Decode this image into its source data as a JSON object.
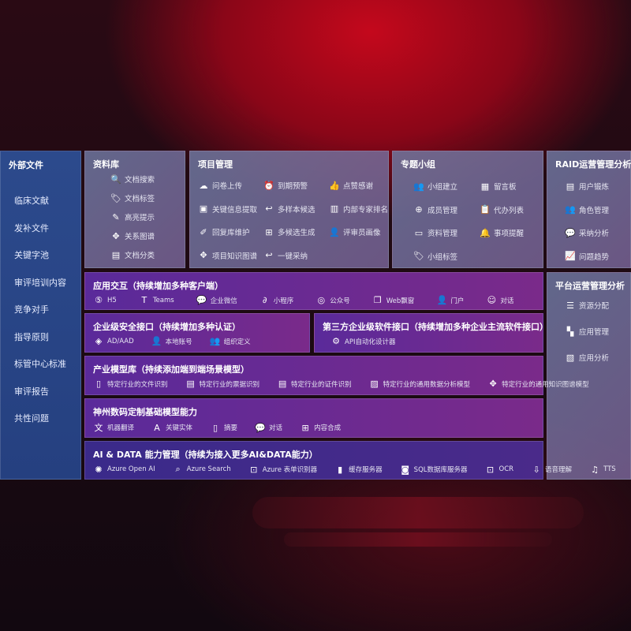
{
  "sidebar": {
    "title": "外部文件",
    "items": [
      "临床文献",
      "发补文件",
      "关键字池",
      "审评培训内容",
      "竞争对手",
      "指导原则",
      "标管中心标准",
      "审评报告",
      "共性问题"
    ]
  },
  "library": {
    "title": "资料库",
    "items": [
      {
        "icon": "document-search-icon",
        "label": "文档搜索"
      },
      {
        "icon": "tag-icon",
        "label": "文档标签"
      },
      {
        "icon": "pen-icon",
        "label": "高亮提示"
      },
      {
        "icon": "graph-icon",
        "label": "关系图谱"
      },
      {
        "icon": "document-classify-icon",
        "label": "文档分类"
      }
    ]
  },
  "project": {
    "title": "项目管理",
    "items": [
      {
        "icon": "cloud-upload-icon",
        "label": "问卷上传"
      },
      {
        "icon": "alarm-icon",
        "label": "到期预警"
      },
      {
        "icon": "thumbs-up-icon",
        "label": "点赞感谢"
      },
      {
        "icon": "window-icon",
        "label": "关键信息提取"
      },
      {
        "icon": "reply-icon",
        "label": "多样本候选"
      },
      {
        "icon": "ranking-icon",
        "label": "内部专家排名"
      },
      {
        "icon": "edit-icon",
        "label": "回复库维护"
      },
      {
        "icon": "puzzle-icon",
        "label": "多候选生成"
      },
      {
        "icon": "person-icon",
        "label": "评审员画像"
      },
      {
        "icon": "graph-icon",
        "label": "项目知识图谱"
      },
      {
        "icon": "reply-icon",
        "label": "一键采纳"
      }
    ]
  },
  "group": {
    "title": "专题小组",
    "items": [
      {
        "icon": "group-icon",
        "label": "小组建立"
      },
      {
        "icon": "bbs-icon",
        "label": "留言板"
      },
      {
        "icon": "user-add-icon",
        "label": "成员管理"
      },
      {
        "icon": "clipboard-icon",
        "label": "代办列表"
      },
      {
        "icon": "folder-icon",
        "label": "资料管理"
      },
      {
        "icon": "bell-icon",
        "label": "事项提醒"
      },
      {
        "icon": "tag-icon",
        "label": "小组标签"
      }
    ]
  },
  "raid": {
    "title": "RAID运营管理分析",
    "items": [
      {
        "icon": "id-card-icon",
        "label": "用户锻炼"
      },
      {
        "icon": "users-icon",
        "label": "角色管理"
      },
      {
        "icon": "qa-icon",
        "label": "采纳分析"
      },
      {
        "icon": "trend-icon",
        "label": "问题趋势"
      }
    ]
  },
  "platform": {
    "title": "平台运营管理分析",
    "items": [
      {
        "icon": "list-icon",
        "label": "资源分配"
      },
      {
        "icon": "apps-icon",
        "label": "应用管理"
      },
      {
        "icon": "chart-icon",
        "label": "应用分析"
      }
    ]
  },
  "interaction": {
    "title": "应用交互（持续增加多种客户端）",
    "items": [
      {
        "icon": "html5-icon",
        "label": "H5"
      },
      {
        "icon": "teams-icon",
        "label": "Teams"
      },
      {
        "icon": "wechat-icon",
        "label": "企业微信"
      },
      {
        "icon": "miniprogram-icon",
        "label": "小程序"
      },
      {
        "icon": "official-account-icon",
        "label": "公众号"
      },
      {
        "icon": "web-window-icon",
        "label": "Web飘窗"
      },
      {
        "icon": "portal-icon",
        "label": "门户"
      },
      {
        "icon": "chat-icon",
        "label": "对话"
      }
    ]
  },
  "security": {
    "title": "企业级安全接口（持续增加多种认证）",
    "items": [
      {
        "icon": "ad-icon",
        "label": "AD/AAD"
      },
      {
        "icon": "local-account-icon",
        "label": "本地账号"
      },
      {
        "icon": "organization-icon",
        "label": "组织定义"
      }
    ]
  },
  "thirdparty": {
    "title": "第三方企业级软件接口（持续增加多种企业主流软件接口）",
    "items": [
      {
        "icon": "gear-icon",
        "label": "API自动化设计器"
      }
    ]
  },
  "industry": {
    "title": "产业模型库（持续添加端到端场景模型）",
    "items": [
      {
        "icon": "file-icon",
        "label": "特定行业的文件识别"
      },
      {
        "icon": "receipt-icon",
        "label": "特定行业的票据识别"
      },
      {
        "icon": "id-card-icon",
        "label": "特定行业的证件识别"
      },
      {
        "icon": "data-analysis-icon",
        "label": "特定行业的通用数据分析模型"
      },
      {
        "icon": "graph-icon",
        "label": "特定行业的通用知识图谱模型"
      }
    ]
  },
  "shenzhou": {
    "title": "神州数码定制基础模型能力",
    "items": [
      {
        "icon": "translate-icon",
        "label": "机器翻译"
      },
      {
        "icon": "entity-icon",
        "label": "关键实体"
      },
      {
        "icon": "summary-icon",
        "label": "摘要"
      },
      {
        "icon": "chat-bubble-icon",
        "label": "对话"
      },
      {
        "icon": "compose-icon",
        "label": "内容合成"
      }
    ]
  },
  "aidata": {
    "title": "AI & DATA 能力管理（持续为接入更多AI&DATA能力）",
    "items": [
      {
        "icon": "openai-icon",
        "label": "Azure Open AI"
      },
      {
        "icon": "search-icon",
        "label": "Azure Search"
      },
      {
        "icon": "form-recognizer-icon",
        "label": "Azure 表单识别器"
      },
      {
        "icon": "cache-icon",
        "label": "缓存服务器"
      },
      {
        "icon": "database-icon",
        "label": "SQL数据库服务器"
      },
      {
        "icon": "ocr-icon",
        "label": "OCR"
      },
      {
        "icon": "speech-icon",
        "label": "语音理解"
      },
      {
        "icon": "tts-icon",
        "label": "TTS"
      }
    ]
  }
}
